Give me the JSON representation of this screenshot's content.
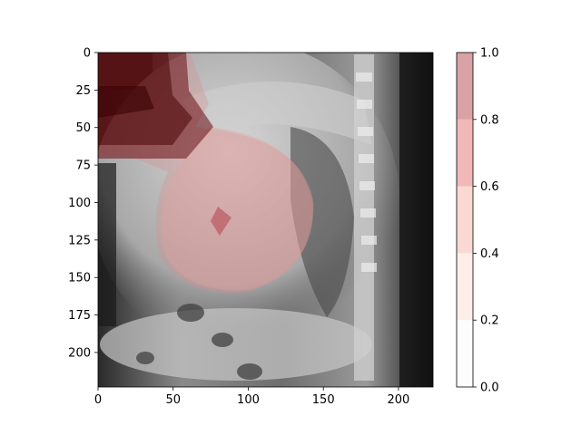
{
  "chart_data": {
    "type": "heatmap",
    "title": "",
    "xlabel": "",
    "ylabel": "",
    "image_description_label": "Lateral chest X-ray with saliency heatmap overlay",
    "xlim": [
      0,
      223
    ],
    "ylim": [
      223,
      0
    ],
    "xticks": [
      0,
      50,
      100,
      150,
      200
    ],
    "yticks": [
      0,
      25,
      50,
      75,
      100,
      125,
      150,
      175,
      200
    ],
    "xtick_labels": [
      "0",
      "50",
      "100",
      "150",
      "200"
    ],
    "ytick_labels": [
      "0",
      "25",
      "50",
      "75",
      "100",
      "125",
      "150",
      "175",
      "200"
    ],
    "colorbar": {
      "levels": [
        0.0,
        0.2,
        0.4,
        0.6,
        0.8,
        1.0
      ],
      "tick_labels": [
        "0.0",
        "0.2",
        "0.4",
        "0.6",
        "0.8",
        "1.0"
      ],
      "colors": [
        "#fdfdfd",
        "#fdeee9",
        "#fbd9d3",
        "#f2b8b8",
        "#d9a2a5"
      ]
    },
    "overlay_regions": [
      {
        "name": "high-attention-upper-left",
        "level": 0.9,
        "x_range": [
          0,
          60
        ],
        "y_range": [
          0,
          70
        ]
      },
      {
        "name": "moderate-attention-heart",
        "level": 0.35,
        "x_range": [
          45,
          145
        ],
        "y_range": [
          60,
          160
        ]
      },
      {
        "name": "peak-spot",
        "level": 0.5,
        "x": 80,
        "y": 110
      }
    ]
  }
}
